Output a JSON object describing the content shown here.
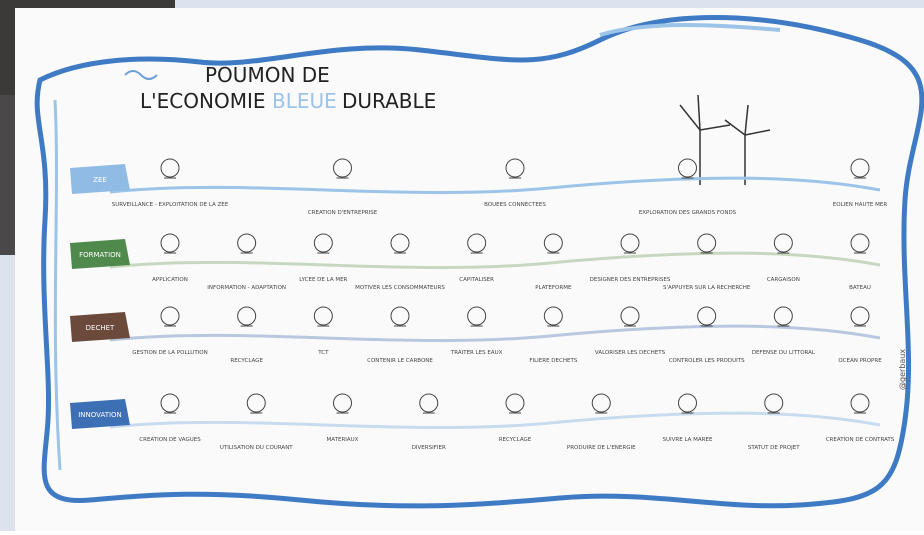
{
  "title": {
    "line1": "POUMON DE",
    "line2a": "L'ECONOMIE",
    "line2b": "BLEUE",
    "line2c": "DURABLE"
  },
  "rows": [
    {
      "label": "ZEE",
      "items": [
        "SURVEILLANCE - EXPLOITATION DE LA ZEE",
        "CREATION D'ENTREPRISE",
        "BOUEES CONNECTEES",
        "EXPLORATION DES GRANDS FONDS",
        "EOLIEN HAUTE MER"
      ]
    },
    {
      "label": "FORMATION",
      "items": [
        "APPLICATION",
        "INFORMATION - ADAPTATION",
        "LYCEE DE LA MER",
        "MOTIVER LES CONSOMMATEURS",
        "CAPITALISER",
        "PLATEFORME",
        "DESIGNER DES ENTREPRISES",
        "S'APPUYER SUR LA RECHERCHE",
        "CARGAISON",
        "BATEAU"
      ]
    },
    {
      "label": "DECHET",
      "items": [
        "GESTION DE LA POLLUTION",
        "RECYCLAGE",
        "TCT",
        "CONTENIR LE CARBONE",
        "TRAITER LES EAUX",
        "FILIERE DECHETS",
        "VALORISER LES DECHETS",
        "CONTROLER LES PRODUITS",
        "DEFENSE DU LITTORAL",
        "OCEAN PROPRE"
      ]
    },
    {
      "label": "INNOVATION",
      "items": [
        "CREATION DE VAGUES",
        "UTILISATION DU COURANT",
        "MATERIAUX",
        "DIVERSIFIER",
        "RECYCLAGE",
        "PRODUIRE DE L'ENERGIE",
        "SUIVRE LA MAREE",
        "STATUT DE PROJET",
        "CREATION DE CONTRATS"
      ]
    }
  ],
  "signature": "@gerbaux"
}
